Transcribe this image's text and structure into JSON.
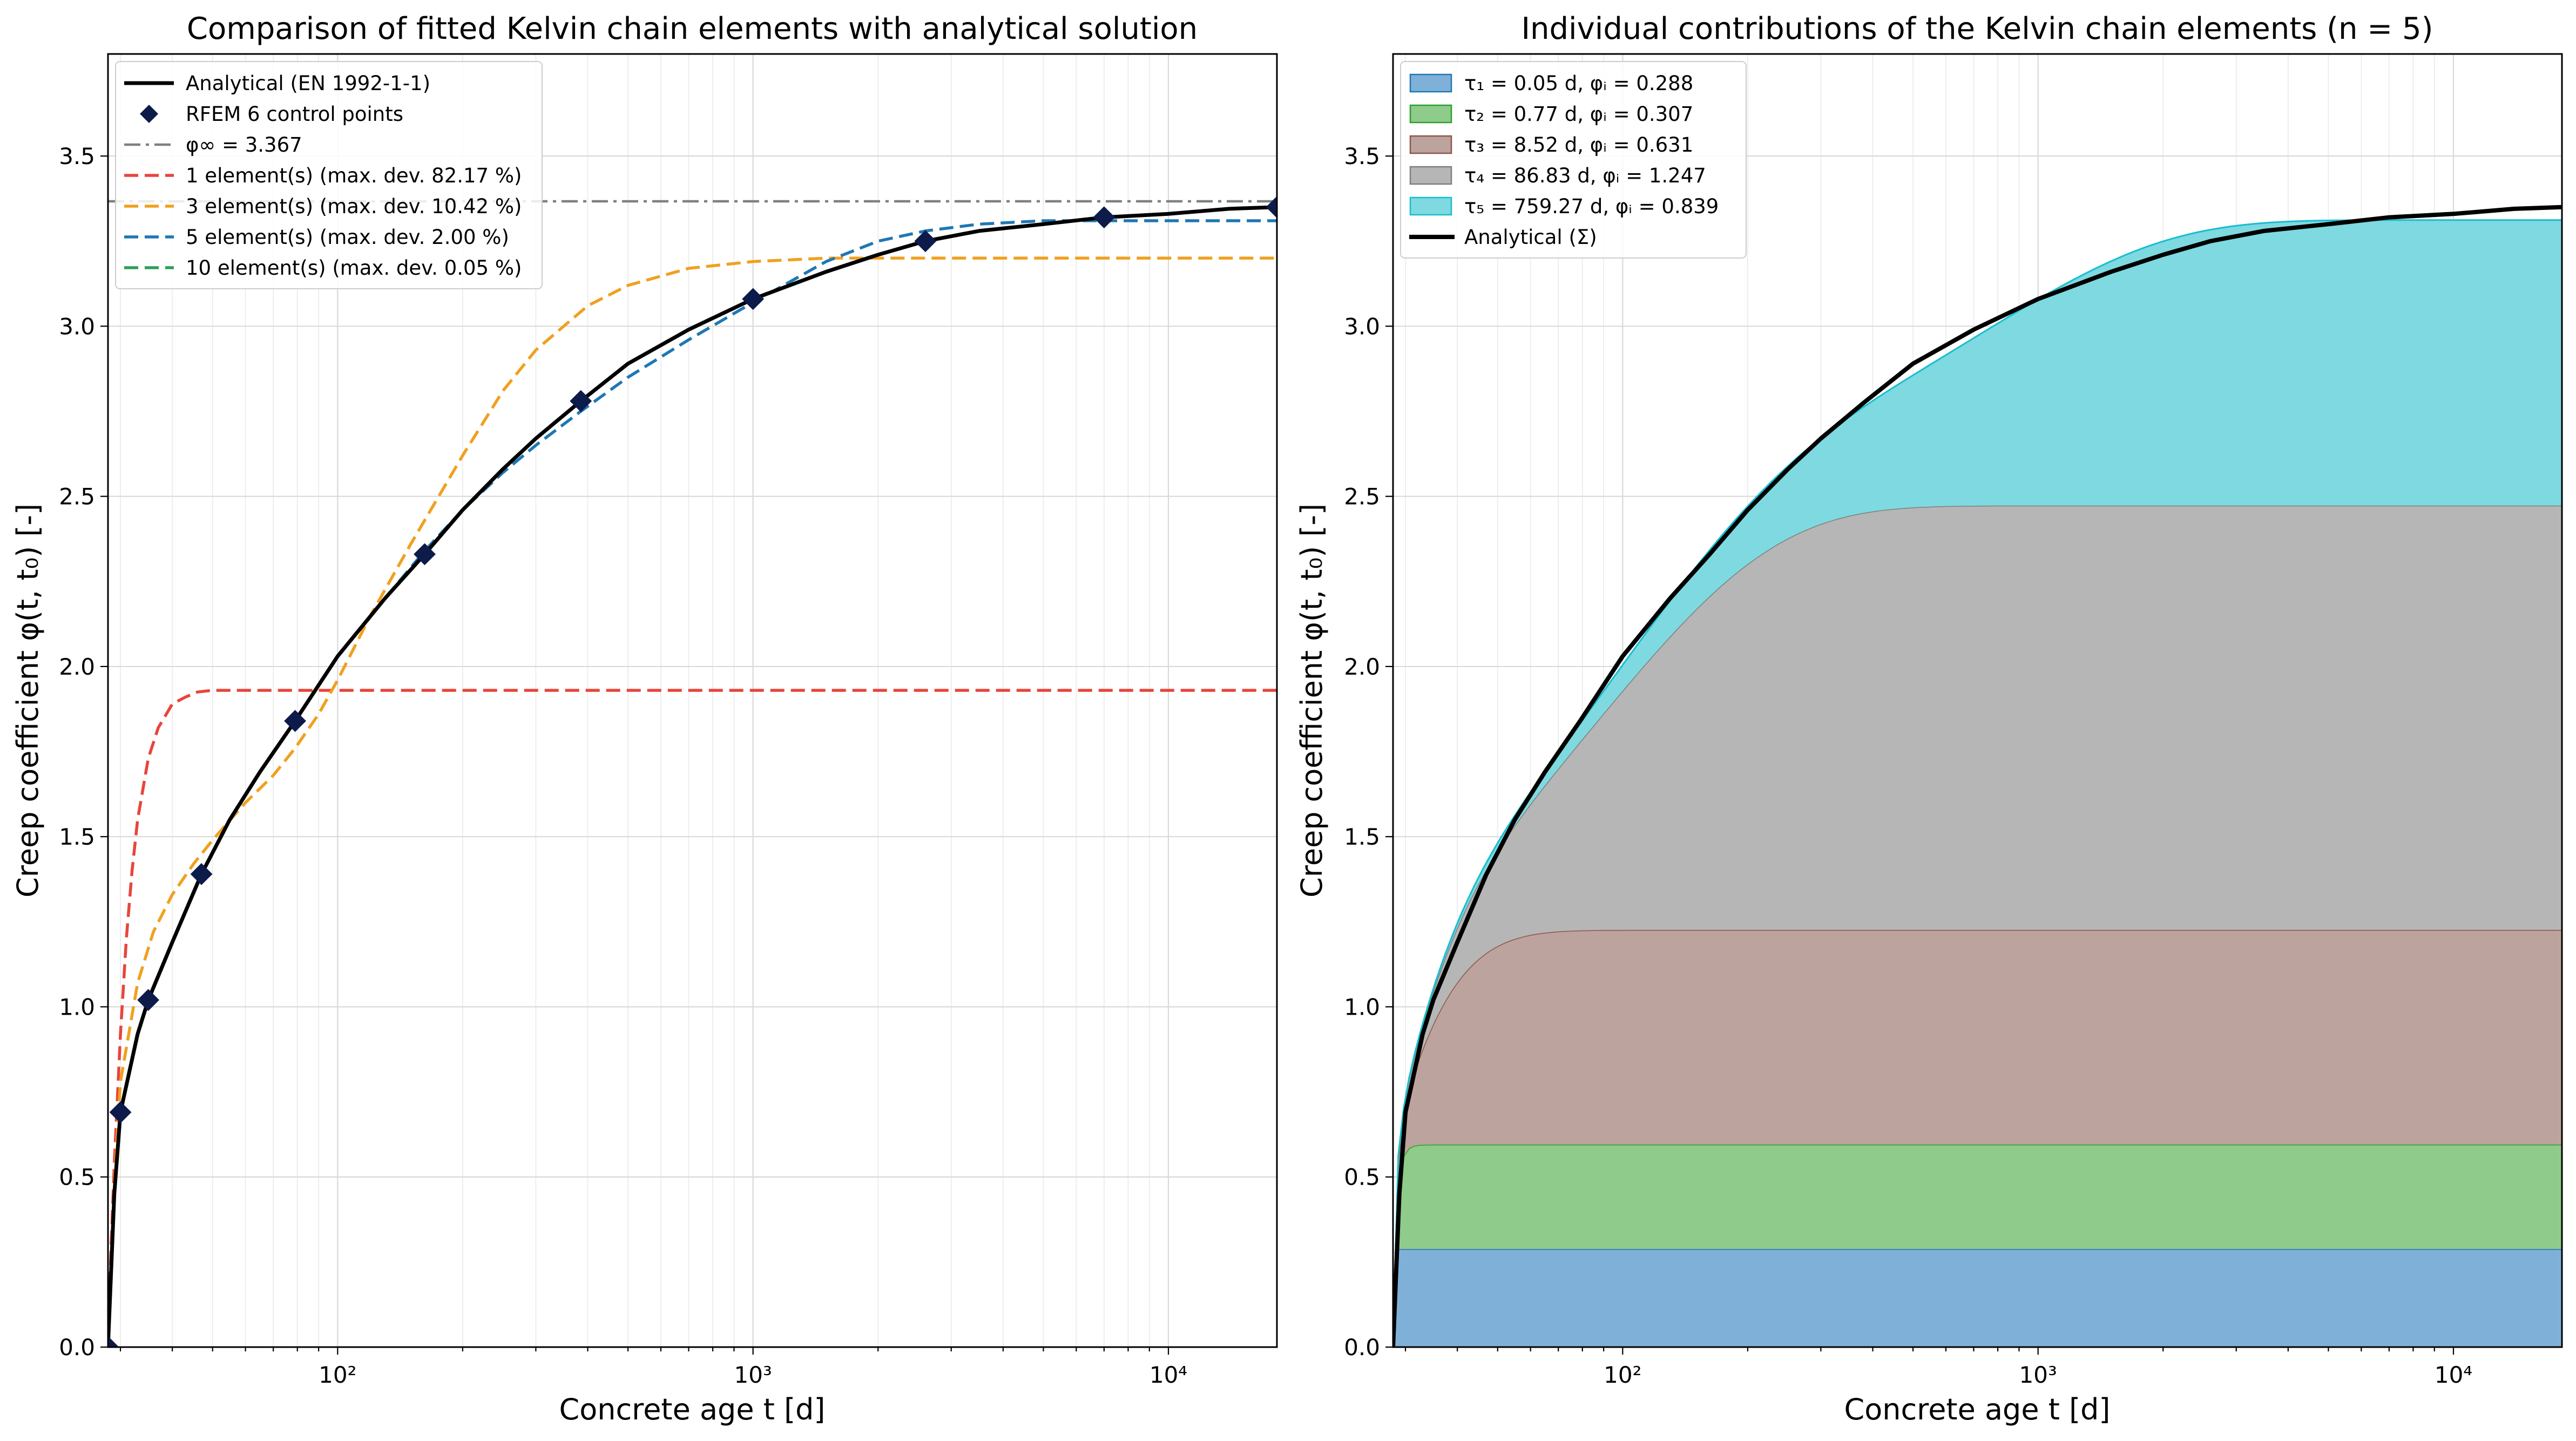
{
  "figure": {
    "panels": [
      "left",
      "right"
    ]
  },
  "chart_data": [
    {
      "type": "line",
      "title": "Comparison of fitted Kelvin chain elements with analytical solution",
      "xlabel": "Concrete age  t  [d]",
      "ylabel": "Creep coefficient  φ(t, t₀)  [-]",
      "xscale": "log",
      "xlim": [
        28,
        18250
      ],
      "ylim": [
        0,
        3.8
      ],
      "xticks": [
        {
          "value": 100,
          "label": "10²"
        },
        {
          "value": 1000,
          "label": "10³"
        },
        {
          "value": 10000,
          "label": "10⁴"
        }
      ],
      "yticks": [
        {
          "value": 0.0,
          "label": "0.0"
        },
        {
          "value": 0.5,
          "label": "0.5"
        },
        {
          "value": 1.0,
          "label": "1.0"
        },
        {
          "value": 1.5,
          "label": "1.5"
        },
        {
          "value": 2.0,
          "label": "2.0"
        },
        {
          "value": 2.5,
          "label": "2.5"
        },
        {
          "value": 3.0,
          "label": "3.0"
        },
        {
          "value": 3.5,
          "label": "3.5"
        }
      ],
      "grid": true,
      "legend_position": "top-left",
      "series": [
        {
          "name": "Analytical (EN 1992-1-1)",
          "style": "solid",
          "color": "#000000",
          "x": [
            28,
            29,
            30,
            33,
            35,
            40,
            47,
            55,
            65,
            79,
            100,
            130,
            162,
            200,
            250,
            300,
            385,
            500,
            700,
            1000,
            1500,
            2000,
            2600,
            3500,
            5000,
            7000,
            10000,
            14000,
            18250
          ],
          "y": [
            0,
            0.45,
            0.69,
            0.92,
            1.02,
            1.19,
            1.39,
            1.55,
            1.69,
            1.84,
            2.03,
            2.2,
            2.33,
            2.46,
            2.58,
            2.67,
            2.78,
            2.89,
            2.99,
            3.08,
            3.16,
            3.21,
            3.25,
            3.28,
            3.3,
            3.32,
            3.33,
            3.345,
            3.35
          ]
        },
        {
          "name": "RFEM 6 control points",
          "style": "marker",
          "marker": "diamond",
          "color": "#0d1b4a",
          "x": [
            28,
            30,
            35,
            47,
            79,
            162,
            385,
            1000,
            2600,
            7000,
            18250
          ],
          "y": [
            0,
            0.69,
            1.02,
            1.39,
            1.84,
            2.33,
            2.78,
            3.08,
            3.25,
            3.32,
            3.35
          ]
        },
        {
          "name": "φ∞ = 3.367",
          "style": "dashdot",
          "color": "#808080",
          "x": [
            28,
            18250
          ],
          "y": [
            3.367,
            3.367
          ]
        },
        {
          "name": "1 element(s)  (max. dev. 82.17 %)",
          "style": "dashed",
          "color": "#e8453c",
          "x": [
            28,
            28.5,
            29,
            30,
            31,
            32,
            33,
            35,
            37,
            40,
            43,
            46,
            50,
            55,
            60,
            70,
            100,
            1000,
            18250
          ],
          "y": [
            0,
            0.3,
            0.54,
            0.92,
            1.2,
            1.4,
            1.55,
            1.73,
            1.82,
            1.89,
            1.91,
            1.925,
            1.93,
            1.93,
            1.93,
            1.93,
            1.93,
            1.93,
            1.93
          ]
        },
        {
          "name": "3 element(s)  (max. dev. 10.42 %)",
          "style": "dashed",
          "color": "#f0a020",
          "x": [
            28,
            29,
            30,
            33,
            36,
            40,
            45,
            50,
            60,
            70,
            79,
            90,
            100,
            120,
            150,
            200,
            250,
            300,
            400,
            500,
            700,
            1000,
            1500,
            2000,
            18250
          ],
          "y": [
            0,
            0.48,
            0.78,
            1.07,
            1.22,
            1.33,
            1.42,
            1.49,
            1.6,
            1.68,
            1.76,
            1.86,
            1.96,
            2.15,
            2.36,
            2.62,
            2.81,
            2.93,
            3.06,
            3.12,
            3.17,
            3.19,
            3.2,
            3.2,
            3.2
          ]
        },
        {
          "name": "5 element(s)  (max. dev. 2.00 %)",
          "style": "dashed",
          "color": "#1f77b4",
          "x": [
            28,
            29,
            30,
            33,
            35,
            40,
            47,
            55,
            65,
            79,
            100,
            130,
            162,
            200,
            250,
            300,
            385,
            500,
            700,
            1000,
            1500,
            2000,
            2600,
            3500,
            5000,
            7000,
            10000,
            18250
          ],
          "y": [
            0,
            0.45,
            0.69,
            0.92,
            1.02,
            1.19,
            1.39,
            1.55,
            1.69,
            1.84,
            2.03,
            2.2,
            2.34,
            2.46,
            2.57,
            2.65,
            2.75,
            2.85,
            2.96,
            3.07,
            3.19,
            3.25,
            3.28,
            3.3,
            3.31,
            3.31,
            3.31,
            3.31
          ]
        },
        {
          "name": "10 element(s)  (max. dev. 0.05 %)",
          "style": "dashed",
          "color": "#2ca05a",
          "x": [
            28,
            29,
            30,
            33,
            35,
            40,
            47,
            55,
            65,
            79,
            100,
            130,
            162,
            200,
            250,
            300,
            385,
            500,
            700,
            1000,
            1500,
            2000,
            2600,
            3500,
            5000,
            7000,
            10000,
            14000,
            18250
          ],
          "y": [
            0,
            0.45,
            0.69,
            0.92,
            1.02,
            1.19,
            1.39,
            1.55,
            1.69,
            1.84,
            2.03,
            2.2,
            2.33,
            2.46,
            2.58,
            2.67,
            2.78,
            2.89,
            2.99,
            3.08,
            3.16,
            3.21,
            3.25,
            3.28,
            3.3,
            3.32,
            3.33,
            3.345,
            3.35
          ]
        }
      ]
    },
    {
      "type": "area",
      "stacked": true,
      "title": "Individual contributions of the Kelvin chain elements (n = 5)",
      "xlabel": "Concrete age  t  [d]",
      "ylabel": "Creep coefficient  φ(t, t₀)  [-]",
      "xscale": "log",
      "xlim": [
        28,
        18250
      ],
      "ylim": [
        0,
        3.8
      ],
      "xticks": [
        {
          "value": 100,
          "label": "10²"
        },
        {
          "value": 1000,
          "label": "10³"
        },
        {
          "value": 10000,
          "label": "10⁴"
        }
      ],
      "yticks": [
        {
          "value": 0.0,
          "label": "0.0"
        },
        {
          "value": 0.5,
          "label": "0.5"
        },
        {
          "value": 1.0,
          "label": "1.0"
        },
        {
          "value": 1.5,
          "label": "1.5"
        },
        {
          "value": 2.0,
          "label": "2.0"
        },
        {
          "value": 2.5,
          "label": "2.5"
        },
        {
          "value": 3.0,
          "label": "3.0"
        },
        {
          "value": 3.5,
          "label": "3.5"
        }
      ],
      "grid": true,
      "legend_position": "top-left",
      "t0": 28,
      "series": [
        {
          "name": "τ₁ = 0.05 d, φᵢ = 0.288",
          "tau": 0.05,
          "phi": 0.288,
          "fill": "#7fb0d8",
          "edge": "#1f77b4"
        },
        {
          "name": "τ₂ = 0.77 d, φᵢ = 0.307",
          "tau": 0.77,
          "phi": 0.307,
          "fill": "#8fcb8a",
          "edge": "#2ca02c"
        },
        {
          "name": "τ₃ = 8.52 d, φᵢ = 0.631",
          "tau": 8.52,
          "phi": 0.631,
          "fill": "#bda39d",
          "edge": "#8c564b"
        },
        {
          "name": "τ₄ = 86.83 d, φᵢ = 1.247",
          "tau": 86.83,
          "phi": 1.247,
          "fill": "#b6b6b6",
          "edge": "#7f7f7f"
        },
        {
          "name": "τ₅ = 759.27 d, φᵢ = 0.839",
          "tau": 759.27,
          "phi": 0.839,
          "fill": "#7ed9e0",
          "edge": "#17becf"
        }
      ],
      "line": {
        "name": "Analytical (Σ)",
        "color": "#000000",
        "x": [
          28,
          29,
          30,
          33,
          35,
          40,
          47,
          55,
          65,
          79,
          100,
          130,
          162,
          200,
          250,
          300,
          385,
          500,
          700,
          1000,
          1500,
          2000,
          2600,
          3500,
          5000,
          7000,
          10000,
          14000,
          18250
        ],
        "y": [
          0,
          0.45,
          0.69,
          0.92,
          1.02,
          1.19,
          1.39,
          1.55,
          1.69,
          1.84,
          2.03,
          2.2,
          2.33,
          2.46,
          2.58,
          2.67,
          2.78,
          2.89,
          2.99,
          3.08,
          3.16,
          3.21,
          3.25,
          3.28,
          3.3,
          3.32,
          3.33,
          3.345,
          3.35
        ]
      }
    }
  ]
}
